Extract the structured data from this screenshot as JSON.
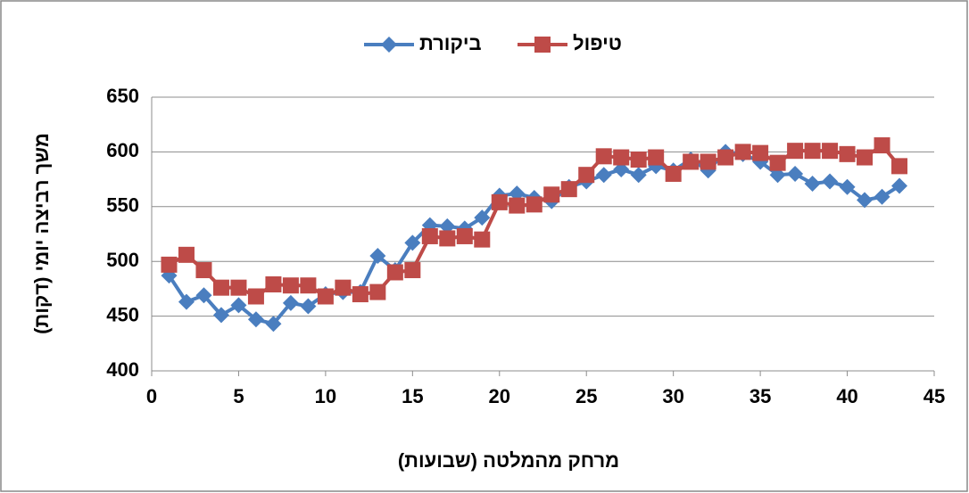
{
  "chart_data": {
    "type": "line",
    "x_label": "מרחק מהמלטה (שבועות)",
    "y_label": "משך רביצה יומי (דקות)",
    "x": [
      1,
      2,
      3,
      4,
      5,
      6,
      7,
      8,
      9,
      10,
      11,
      12,
      13,
      14,
      15,
      16,
      17,
      18,
      19,
      20,
      21,
      22,
      23,
      24,
      25,
      26,
      27,
      28,
      29,
      30,
      31,
      32,
      33,
      34,
      35,
      36,
      37,
      38,
      39,
      40,
      41,
      42,
      43
    ],
    "series": [
      {
        "name": "ביקורת",
        "color": "#4a7ebf",
        "marker": "diamond",
        "values": [
          487,
          463,
          469,
          451,
          460,
          447,
          443,
          462,
          459,
          470,
          472,
          472,
          505,
          492,
          517,
          533,
          532,
          530,
          540,
          560,
          562,
          558,
          555,
          568,
          573,
          579,
          584,
          579,
          587,
          583,
          593,
          583,
          600,
          598,
          591,
          579,
          580,
          571,
          573,
          568,
          556,
          559,
          569
        ]
      },
      {
        "name": "טיפול",
        "color": "#be4b48",
        "marker": "square",
        "values": [
          497,
          506,
          492,
          476,
          476,
          468,
          479,
          478,
          478,
          468,
          476,
          470,
          472,
          490,
          492,
          523,
          521,
          523,
          520,
          554,
          551,
          552,
          561,
          566,
          579,
          596,
          595,
          593,
          595,
          580,
          591,
          591,
          595,
          600,
          599,
          590,
          601,
          601,
          601,
          598,
          595,
          606,
          587
        ]
      }
    ],
    "xlim": [
      0,
      45
    ],
    "xticks": [
      0,
      5,
      10,
      15,
      20,
      25,
      30,
      35,
      40,
      45
    ],
    "ylim": [
      400,
      650
    ],
    "yticks": [
      400,
      450,
      500,
      550,
      600,
      650
    ],
    "grid": true,
    "legend": "top"
  }
}
